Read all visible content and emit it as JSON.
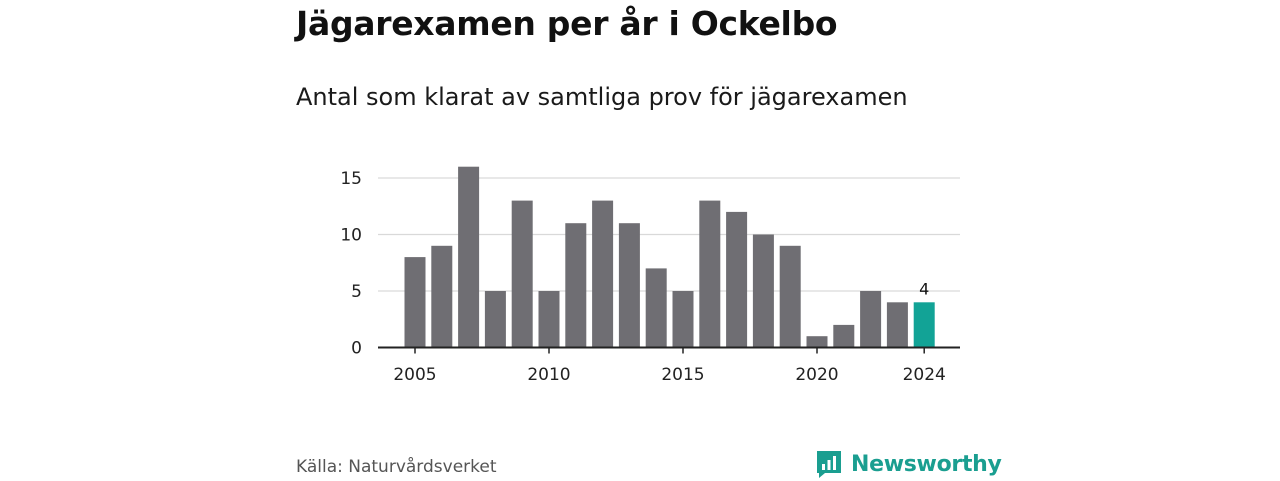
{
  "header": {
    "title": "Jägarexamen per år i Ockelbo",
    "subtitle": "Antal som klarat av samtliga prov för jägarexamen"
  },
  "footer": {
    "source": "Källa: Naturvårdsverket",
    "brand": "Newsworthy"
  },
  "colors": {
    "bar": "#6f6e73",
    "highlight": "#12a396",
    "grid": "#d9d9d9",
    "axis": "#222222",
    "brand": "#1a9e90"
  },
  "chart_data": {
    "type": "bar",
    "x": [
      2005,
      2006,
      2007,
      2008,
      2009,
      2010,
      2011,
      2012,
      2013,
      2014,
      2015,
      2016,
      2017,
      2018,
      2019,
      2020,
      2021,
      2022,
      2023,
      2024
    ],
    "values": [
      8,
      9,
      16,
      5,
      13,
      5,
      11,
      13,
      11,
      7,
      5,
      13,
      12,
      10,
      9,
      1,
      2,
      5,
      4,
      4
    ],
    "highlight_x": 2024,
    "highlight_label": "4",
    "x_ticks": [
      2005,
      2010,
      2015,
      2020,
      2024
    ],
    "y_ticks": [
      0,
      5,
      10,
      15
    ],
    "ylim": [
      0,
      17
    ],
    "grid": true,
    "legend": "none"
  }
}
